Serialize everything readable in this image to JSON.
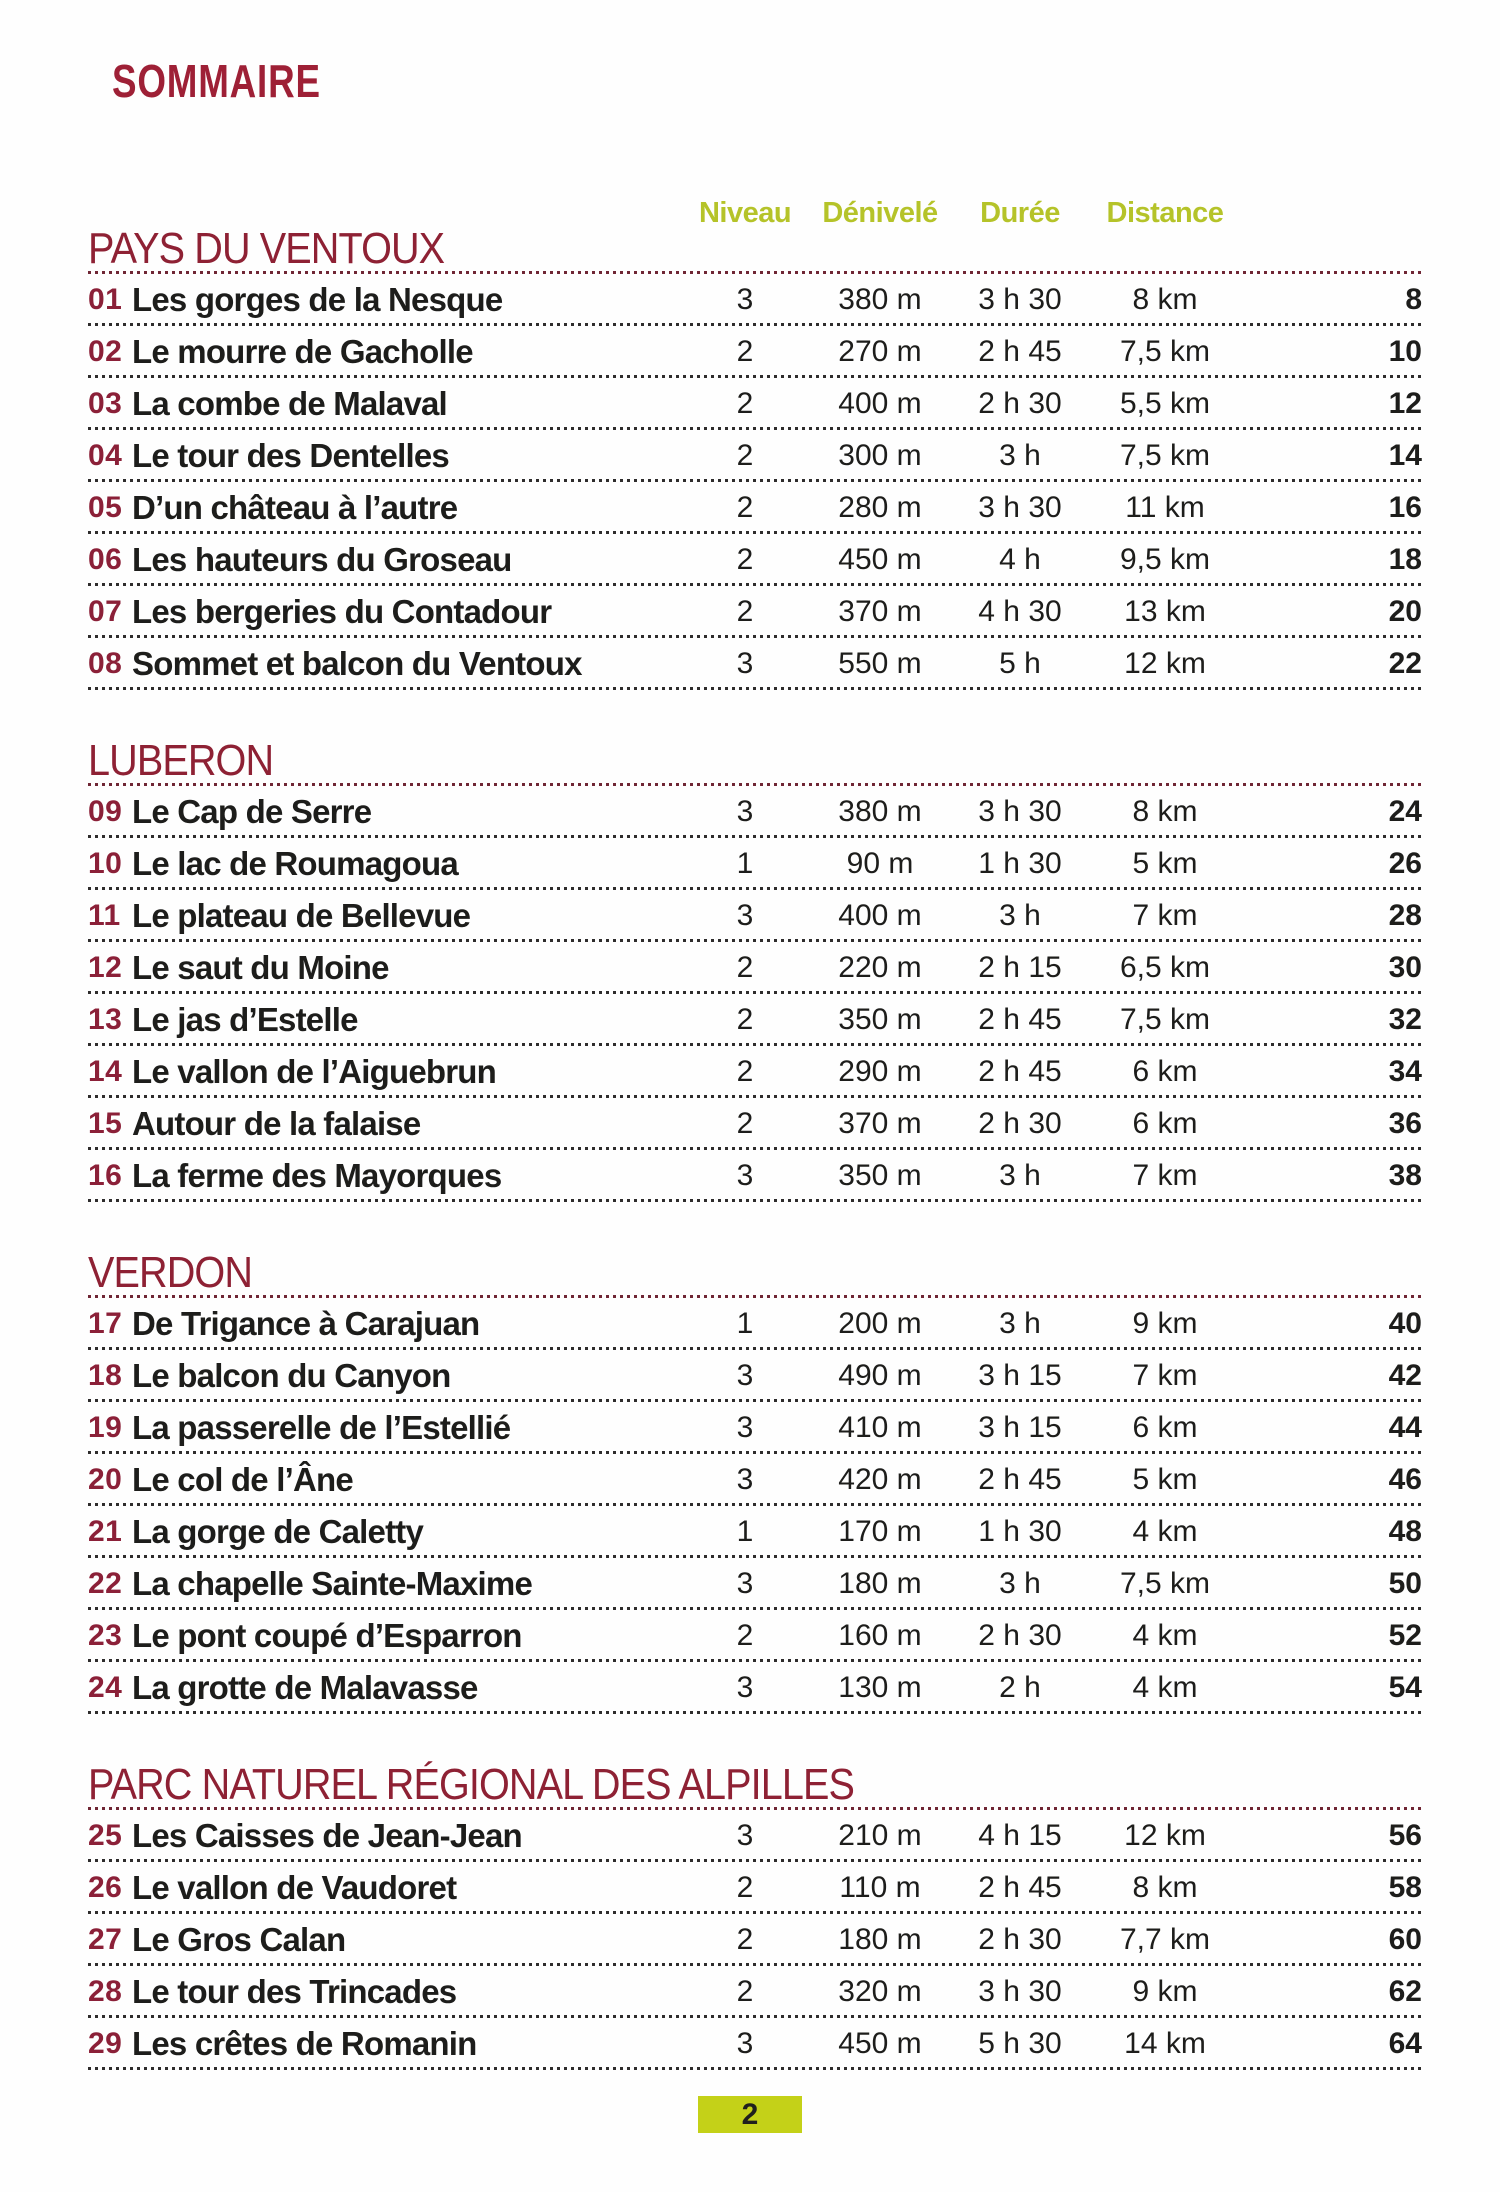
{
  "page": {
    "title": "SOMMAIRE",
    "footer_page_number": "2"
  },
  "colors": {
    "title_red": "#9e2036",
    "section_red": "#8e2134",
    "number_red": "#8b2038",
    "header_green": "#b5c329",
    "badge_green": "#c4d118",
    "text_dark": "#1d1d1b"
  },
  "table": {
    "column_headers": [
      "Niveau",
      "Dénivelé",
      "Durée",
      "Distance"
    ],
    "sections": [
      {
        "title": "PAYS DU VENTOUX",
        "rows": [
          {
            "num": "01",
            "title": "Les gorges de la Nesque",
            "niveau": "3",
            "denivele": "380 m",
            "duree": "3 h 30",
            "distance": "8 km",
            "page": "8"
          },
          {
            "num": "02",
            "title": "Le mourre de Gacholle",
            "niveau": "2",
            "denivele": "270 m",
            "duree": "2 h 45",
            "distance": "7,5 km",
            "page": "10"
          },
          {
            "num": "03",
            "title": "La combe de Malaval",
            "niveau": "2",
            "denivele": "400 m",
            "duree": "2 h 30",
            "distance": "5,5 km",
            "page": "12"
          },
          {
            "num": "04",
            "title": "Le tour des Dentelles",
            "niveau": "2",
            "denivele": "300 m",
            "duree": "3 h",
            "distance": "7,5 km",
            "page": "14"
          },
          {
            "num": "05",
            "title": "D’un château à l’autre",
            "niveau": "2",
            "denivele": "280 m",
            "duree": "3 h 30",
            "distance": "11 km",
            "page": "16"
          },
          {
            "num": "06",
            "title": "Les hauteurs du Groseau",
            "niveau": "2",
            "denivele": "450 m",
            "duree": "4 h",
            "distance": "9,5 km",
            "page": "18"
          },
          {
            "num": "07",
            "title": "Les bergeries du Contadour",
            "niveau": "2",
            "denivele": "370 m",
            "duree": "4 h 30",
            "distance": "13 km",
            "page": "20"
          },
          {
            "num": "08",
            "title": "Sommet et balcon du Ventoux",
            "niveau": "3",
            "denivele": "550 m",
            "duree": "5 h",
            "distance": "12 km",
            "page": "22"
          }
        ]
      },
      {
        "title": "LUBERON",
        "rows": [
          {
            "num": "09",
            "title": "Le Cap de Serre",
            "niveau": "3",
            "denivele": "380 m",
            "duree": "3 h 30",
            "distance": "8 km",
            "page": "24"
          },
          {
            "num": "10",
            "title": "Le lac de Roumagoua",
            "niveau": "1",
            "denivele": "90 m",
            "duree": "1 h 30",
            "distance": "5 km",
            "page": "26"
          },
          {
            "num": "11",
            "title": "Le plateau de Bellevue",
            "niveau": "3",
            "denivele": "400 m",
            "duree": "3 h",
            "distance": "7 km",
            "page": "28"
          },
          {
            "num": "12",
            "title": "Le saut du Moine",
            "niveau": "2",
            "denivele": "220 m",
            "duree": "2 h 15",
            "distance": "6,5 km",
            "page": "30"
          },
          {
            "num": "13",
            "title": "Le jas d’Estelle",
            "niveau": "2",
            "denivele": "350 m",
            "duree": "2 h 45",
            "distance": "7,5 km",
            "page": "32"
          },
          {
            "num": "14",
            "title": "Le vallon de l’Aiguebrun",
            "niveau": "2",
            "denivele": "290 m",
            "duree": "2 h 45",
            "distance": "6 km",
            "page": "34"
          },
          {
            "num": "15",
            "title": "Autour de la falaise",
            "niveau": "2",
            "denivele": "370 m",
            "duree": "2 h 30",
            "distance": "6 km",
            "page": "36"
          },
          {
            "num": "16",
            "title": "La ferme des Mayorques",
            "niveau": "3",
            "denivele": "350 m",
            "duree": "3 h",
            "distance": "7 km",
            "page": "38"
          }
        ]
      },
      {
        "title": "VERDON",
        "rows": [
          {
            "num": "17",
            "title": "De Trigance à Carajuan",
            "niveau": "1",
            "denivele": "200 m",
            "duree": "3 h",
            "distance": "9 km",
            "page": "40"
          },
          {
            "num": "18",
            "title": "Le balcon du Canyon",
            "niveau": "3",
            "denivele": "490 m",
            "duree": "3 h 15",
            "distance": "7 km",
            "page": "42"
          },
          {
            "num": "19",
            "title": "La passerelle de l’Estellié",
            "niveau": "3",
            "denivele": "410 m",
            "duree": "3 h 15",
            "distance": "6 km",
            "page": "44"
          },
          {
            "num": "20",
            "title": "Le col de l’Âne",
            "niveau": "3",
            "denivele": "420 m",
            "duree": "2 h 45",
            "distance": "5 km",
            "page": "46"
          },
          {
            "num": "21",
            "title": "La gorge de Caletty",
            "niveau": "1",
            "denivele": "170 m",
            "duree": "1 h 30",
            "distance": "4 km",
            "page": "48"
          },
          {
            "num": "22",
            "title": "La chapelle Sainte-Maxime",
            "niveau": "3",
            "denivele": "180 m",
            "duree": "3 h",
            "distance": "7,5 km",
            "page": "50"
          },
          {
            "num": "23",
            "title": "Le pont coupé d’Esparron",
            "niveau": "2",
            "denivele": "160 m",
            "duree": "2 h 30",
            "distance": "4 km",
            "page": "52"
          },
          {
            "num": "24",
            "title": "La grotte de Malavasse",
            "niveau": "3",
            "denivele": "130 m",
            "duree": "2 h",
            "distance": "4 km",
            "page": "54"
          }
        ]
      },
      {
        "title": "PARC NATUREL RÉGIONAL DES ALPILLES",
        "rows": [
          {
            "num": "25",
            "title": "Les Caisses de Jean-Jean",
            "niveau": "3",
            "denivele": "210 m",
            "duree": "4 h 15",
            "distance": "12 km",
            "page": "56"
          },
          {
            "num": "26",
            "title": "Le vallon de Vaudoret",
            "niveau": "2",
            "denivele": "110 m",
            "duree": "2 h 45",
            "distance": "8 km",
            "page": "58"
          },
          {
            "num": "27",
            "title": "Le Gros Calan",
            "niveau": "2",
            "denivele": "180 m",
            "duree": "2 h 30",
            "distance": "7,7 km",
            "page": "60"
          },
          {
            "num": "28",
            "title": "Le tour des Trincades",
            "niveau": "2",
            "denivele": "320 m",
            "duree": "3 h 30",
            "distance": "9 km",
            "page": "62"
          },
          {
            "num": "29",
            "title": "Les crêtes de Romanin",
            "niveau": "3",
            "denivele": "450 m",
            "duree": "5 h 30",
            "distance": "14 km",
            "page": "64"
          }
        ]
      }
    ]
  }
}
